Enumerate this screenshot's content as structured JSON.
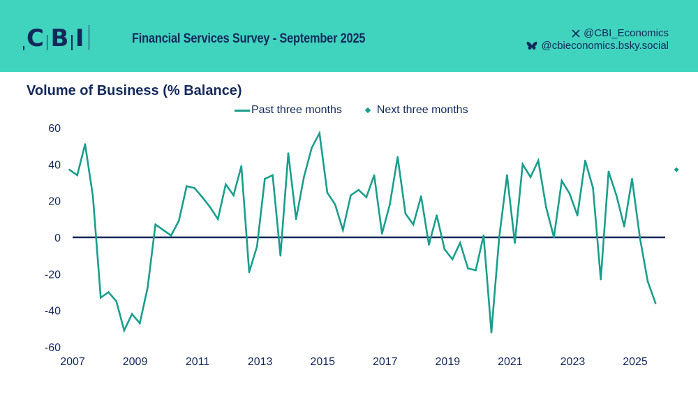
{
  "header": {
    "logo_text": [
      "C",
      "B",
      "I"
    ],
    "title": "Financial Services Survey - September 2025",
    "social": [
      {
        "icon": "x-icon",
        "handle": "@CBI_Economics"
      },
      {
        "icon": "bluesky-butterfly-icon",
        "handle": "@cbieconomics.bsky.social"
      }
    ]
  },
  "colors": {
    "header_bg": "#40d4bf",
    "text": "#13285a",
    "series": "#1a9e8c",
    "zero_line": "#13285a"
  },
  "chart_data": {
    "type": "line",
    "title": "Volume of Business (% Balance)",
    "xlabel": "",
    "ylabel": "",
    "ylim": [
      -60,
      60
    ],
    "yticks": [
      60,
      40,
      20,
      0,
      -20,
      -40,
      -60
    ],
    "xticks": [
      "2007",
      "2009",
      "2011",
      "2013",
      "2015",
      "2017",
      "2019",
      "2021",
      "2023",
      "2025"
    ],
    "xlim": [
      2007,
      2026
    ],
    "grid": false,
    "legend_position": "top-center",
    "series": [
      {
        "name": "Past three months",
        "style": "line",
        "start": 2006.9,
        "step": 0.25,
        "values": [
          37,
          34,
          51,
          22.5,
          -33,
          -30,
          -35,
          -51,
          -42,
          -47,
          -27.5,
          7,
          4,
          1,
          9,
          28,
          27,
          22,
          16.5,
          10,
          29,
          23,
          39,
          -19,
          -5,
          32,
          34,
          -10,
          46,
          10,
          33,
          49,
          57,
          24.5,
          18,
          4,
          23,
          26,
          22,
          34,
          2,
          18,
          44,
          13,
          7,
          22.5,
          -4,
          12,
          -6.5,
          -12,
          -3,
          -17,
          -18,
          1,
          -52,
          0,
          34,
          -3,
          40,
          33,
          42,
          16.5,
          0,
          31,
          24,
          12,
          42,
          27,
          -23,
          36,
          23,
          6,
          32,
          0,
          -24,
          -36
        ]
      },
      {
        "name": "Next three months",
        "style": "marker",
        "x": [
          2025.65
        ],
        "values": [
          37
        ]
      }
    ]
  }
}
